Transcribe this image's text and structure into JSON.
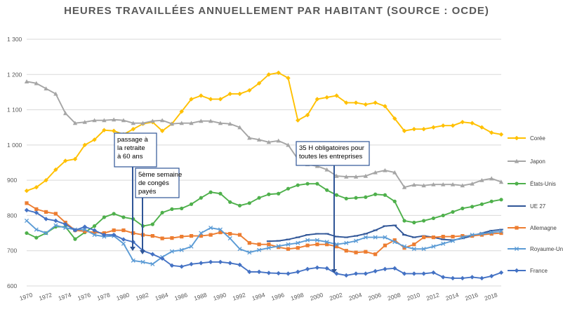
{
  "chart_data": {
    "type": "line",
    "title": "HEURES TRAVAILLÉES ANNUELLEMENT PAR HABITANT (SOURCE : OCDE)",
    "xlabel": "",
    "ylabel": "",
    "xlim": [
      1970,
      2019
    ],
    "ylim": [
      600,
      1300
    ],
    "y_ticks": [
      600,
      700,
      800,
      900,
      1000,
      1100,
      1200,
      1300
    ],
    "y_tick_labels": [
      "600",
      "700",
      "800",
      "900",
      "1 000",
      "1 100",
      "1 200",
      "1 300"
    ],
    "x_ticks": [
      1970,
      1972,
      1974,
      1976,
      1978,
      1980,
      1982,
      1984,
      1986,
      1988,
      1990,
      1992,
      1994,
      1996,
      1998,
      2000,
      2002,
      2004,
      2006,
      2008,
      2010,
      2012,
      2014,
      2016,
      2018
    ],
    "x_tick_labels": [
      "1970",
      "1972",
      "1974",
      "1976",
      "1978",
      "1980",
      "1982",
      "1984",
      "1986",
      "1988",
      "1990",
      "1992",
      "1994",
      "1996",
      "1998",
      "2000",
      "2002",
      "2004",
      "2006",
      "2008",
      "2010",
      "2012",
      "2014",
      "2016",
      "2018"
    ],
    "grid": true,
    "legend_position": "right",
    "series": [
      {
        "name": "Corée",
        "color": "#ffc000",
        "marker": "diamond",
        "start": 1970,
        "values": [
          870,
          880,
          900,
          930,
          955,
          960,
          1000,
          1015,
          1042,
          1040,
          1030,
          1045,
          1060,
          1065,
          1040,
          1060,
          1095,
          1130,
          1140,
          1130,
          1130,
          1145,
          1145,
          1155,
          1175,
          1200,
          1205,
          1190,
          1070,
          1085,
          1130,
          1135,
          1140,
          1120,
          1120,
          1115,
          1120,
          1110,
          1075,
          1040,
          1045,
          1045,
          1050,
          1055,
          1055,
          1065,
          1062,
          1050,
          1035,
          1030
        ]
      },
      {
        "name": "Japon",
        "color": "#a5a5a5",
        "marker": "triangle",
        "start": 1970,
        "values": [
          1180,
          1175,
          1160,
          1145,
          1090,
          1062,
          1065,
          1070,
          1070,
          1072,
          1070,
          1062,
          1062,
          1068,
          1070,
          1060,
          1062,
          1062,
          1068,
          1068,
          1062,
          1060,
          1050,
          1020,
          1015,
          1008,
          1012,
          1000,
          960,
          945,
          940,
          930,
          912,
          910,
          910,
          912,
          922,
          928,
          922,
          880,
          887,
          885,
          888,
          888,
          888,
          885,
          890,
          900,
          905,
          895
        ]
      },
      {
        "name": "États-Unis",
        "color": "#4eb04b",
        "marker": "circle",
        "start": 1970,
        "values": [
          750,
          737,
          750,
          768,
          768,
          733,
          752,
          770,
          795,
          805,
          795,
          790,
          770,
          775,
          808,
          818,
          820,
          832,
          850,
          866,
          862,
          838,
          828,
          835,
          850,
          860,
          862,
          876,
          886,
          890,
          890,
          872,
          858,
          848,
          850,
          852,
          860,
          858,
          840,
          785,
          780,
          785,
          792,
          800,
          810,
          820,
          825,
          832,
          840,
          845
        ]
      },
      {
        "name": "UE 27",
        "color": "#2f5597",
        "marker": "dash",
        "start": 1995,
        "values": [
          727,
          728,
          732,
          738,
          745,
          748,
          748,
          740,
          738,
          742,
          748,
          758,
          770,
          772,
          745,
          738,
          742,
          738,
          732,
          730,
          735,
          742,
          750,
          757,
          760
        ]
      },
      {
        "name": "Allemagne",
        "color": "#ed7d31",
        "marker": "square",
        "start": 1970,
        "values": [
          835,
          818,
          810,
          805,
          780,
          758,
          755,
          752,
          750,
          758,
          758,
          750,
          745,
          742,
          735,
          736,
          740,
          742,
          742,
          745,
          752,
          748,
          745,
          722,
          718,
          718,
          710,
          705,
          708,
          715,
          718,
          718,
          712,
          700,
          695,
          697,
          690,
          715,
          730,
          708,
          718,
          738,
          738,
          740,
          740,
          742,
          742,
          745,
          748,
          750
        ]
      },
      {
        "name": "Royaume-Uni",
        "color": "#5b9bd5",
        "marker": "cross",
        "start": 1970,
        "values": [
          785,
          760,
          750,
          772,
          765,
          760,
          760,
          745,
          740,
          742,
          720,
          672,
          668,
          662,
          682,
          698,
          702,
          712,
          750,
          765,
          760,
          735,
          705,
          695,
          702,
          708,
          713,
          718,
          722,
          730,
          730,
          725,
          718,
          722,
          728,
          738,
          738,
          738,
          725,
          712,
          705,
          705,
          712,
          720,
          728,
          738,
          745,
          748,
          752,
          755
        ]
      },
      {
        "name": "France",
        "color": "#4472c4",
        "marker": "diamond",
        "start": 1970,
        "values": [
          815,
          808,
          790,
          785,
          775,
          758,
          768,
          758,
          745,
          745,
          732,
          725,
          700,
          690,
          678,
          658,
          655,
          662,
          665,
          668,
          668,
          665,
          660,
          640,
          640,
          637,
          636,
          635,
          640,
          648,
          652,
          650,
          635,
          630,
          635,
          635,
          642,
          648,
          650,
          635,
          635,
          635,
          638,
          625,
          622,
          622,
          625,
          622,
          628,
          638
        ]
      }
    ],
    "annotations": [
      {
        "lines": [
          "passage à",
          "la retraite",
          "à 60 ans"
        ],
        "year": 1982
      },
      {
        "lines": [
          "5ème semaine",
          "de congés",
          "payés"
        ],
        "year": 1982
      },
      {
        "lines": [
          "35 H obligatoires pour",
          "toutes les entreprises"
        ],
        "year": 2002
      }
    ]
  }
}
